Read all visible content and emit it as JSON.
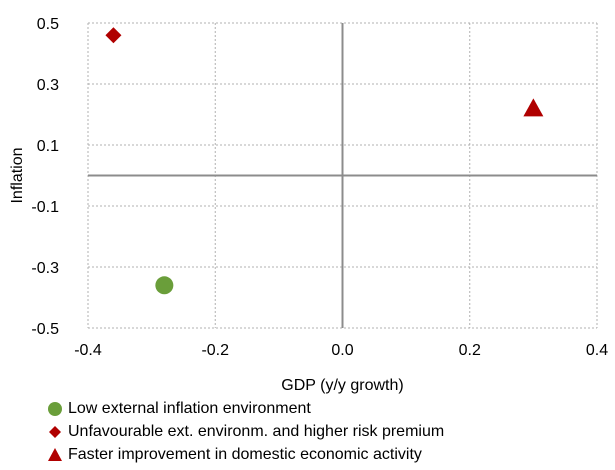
{
  "chart_data": {
    "type": "scatter",
    "xlabel": "GDP (y/y growth)",
    "ylabel": "Inflation",
    "xlim": [
      -0.4,
      0.4
    ],
    "ylim": [
      -0.5,
      0.5
    ],
    "x_ticks": [
      -0.4,
      -0.2,
      0.0,
      0.2,
      0.4
    ],
    "x_tick_labels": [
      "-0.4",
      "-0.2",
      "0.0",
      "0.2",
      "0.4"
    ],
    "y_ticks": [
      -0.5,
      -0.3,
      -0.1,
      0.1,
      0.3,
      0.5
    ],
    "y_tick_labels": [
      "-0.5",
      "-0.3",
      "-0.1",
      "0.1",
      "0.3",
      "0.5"
    ],
    "grid": true,
    "gridline_style": "dotted",
    "legend_position": "bottom-left",
    "series": [
      {
        "name": "Low external inflation environment",
        "marker": "circle",
        "color": "#6a9e3a",
        "x": [
          -0.28
        ],
        "y": [
          -0.36
        ]
      },
      {
        "name": "Unfavourable ext. environm. and higher risk premium",
        "marker": "diamond",
        "color": "#b00000",
        "x": [
          -0.36
        ],
        "y": [
          0.46
        ]
      },
      {
        "name": "Faster improvement in domestic economic activity",
        "marker": "triangle",
        "color": "#b00000",
        "x": [
          0.3
        ],
        "y": [
          0.22
        ]
      }
    ]
  }
}
